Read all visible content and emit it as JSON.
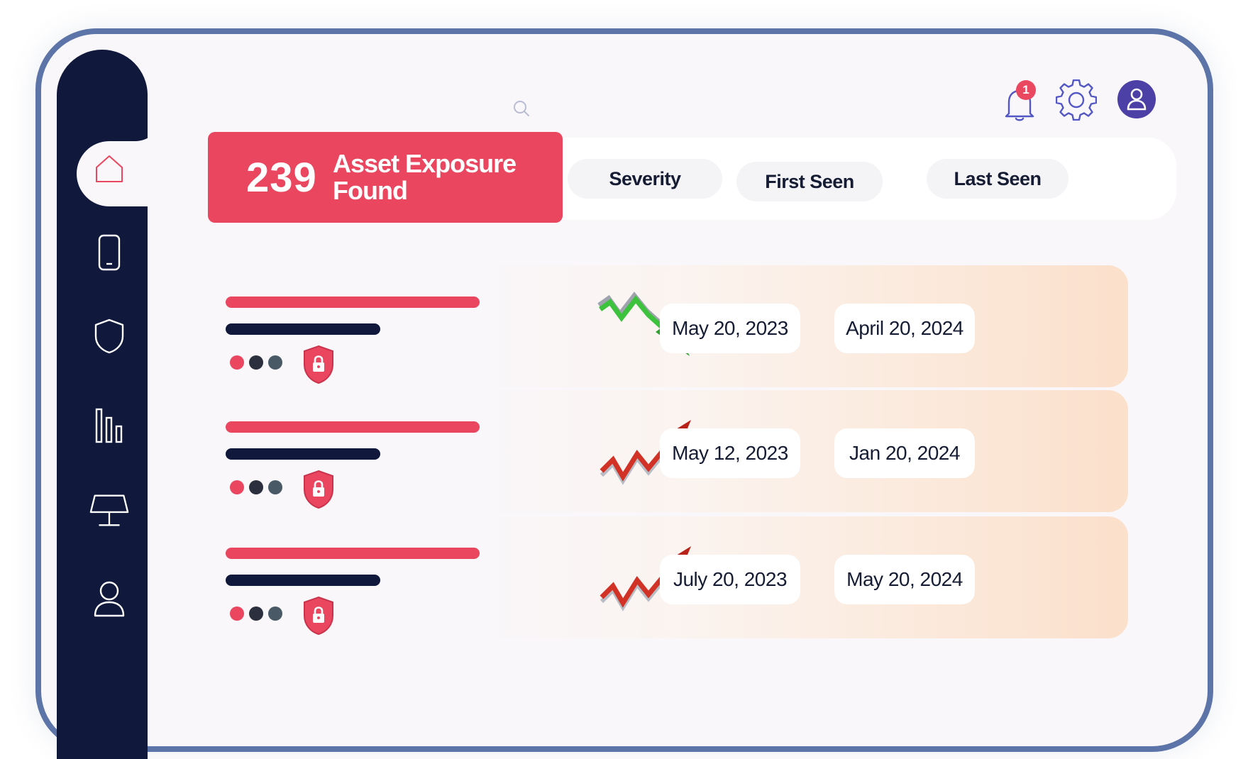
{
  "exposure": {
    "count": "239",
    "label_line1": "Asset Exposure",
    "label_line2": "Found"
  },
  "header": {
    "notification_count": "1",
    "icons": [
      "bell-icon",
      "gear-icon",
      "user-icon",
      "search-icon"
    ]
  },
  "filters": {
    "severity": "Severity",
    "first_seen": "First Seen",
    "last_seen": "Last Seen"
  },
  "sidebar": {
    "items": [
      "home-icon",
      "phone-icon",
      "shield-icon",
      "bar-chart-icon",
      "monitor-icon",
      "user-icon"
    ]
  },
  "rows": [
    {
      "trend": "down",
      "first_seen": "May 20, 2023",
      "last_seen": "April 20, 2024"
    },
    {
      "trend": "up",
      "first_seen": "May 12, 2023",
      "last_seen": "Jan 20, 2024"
    },
    {
      "trend": "up",
      "first_seen": "July 20, 2023",
      "last_seen": "May 20, 2024"
    }
  ],
  "colors": {
    "accent": "#ea4660",
    "sidebar": "#10183b",
    "trend_up": "#c8281e",
    "trend_down": "#3cc23c",
    "avatar": "#4c3fa6"
  }
}
